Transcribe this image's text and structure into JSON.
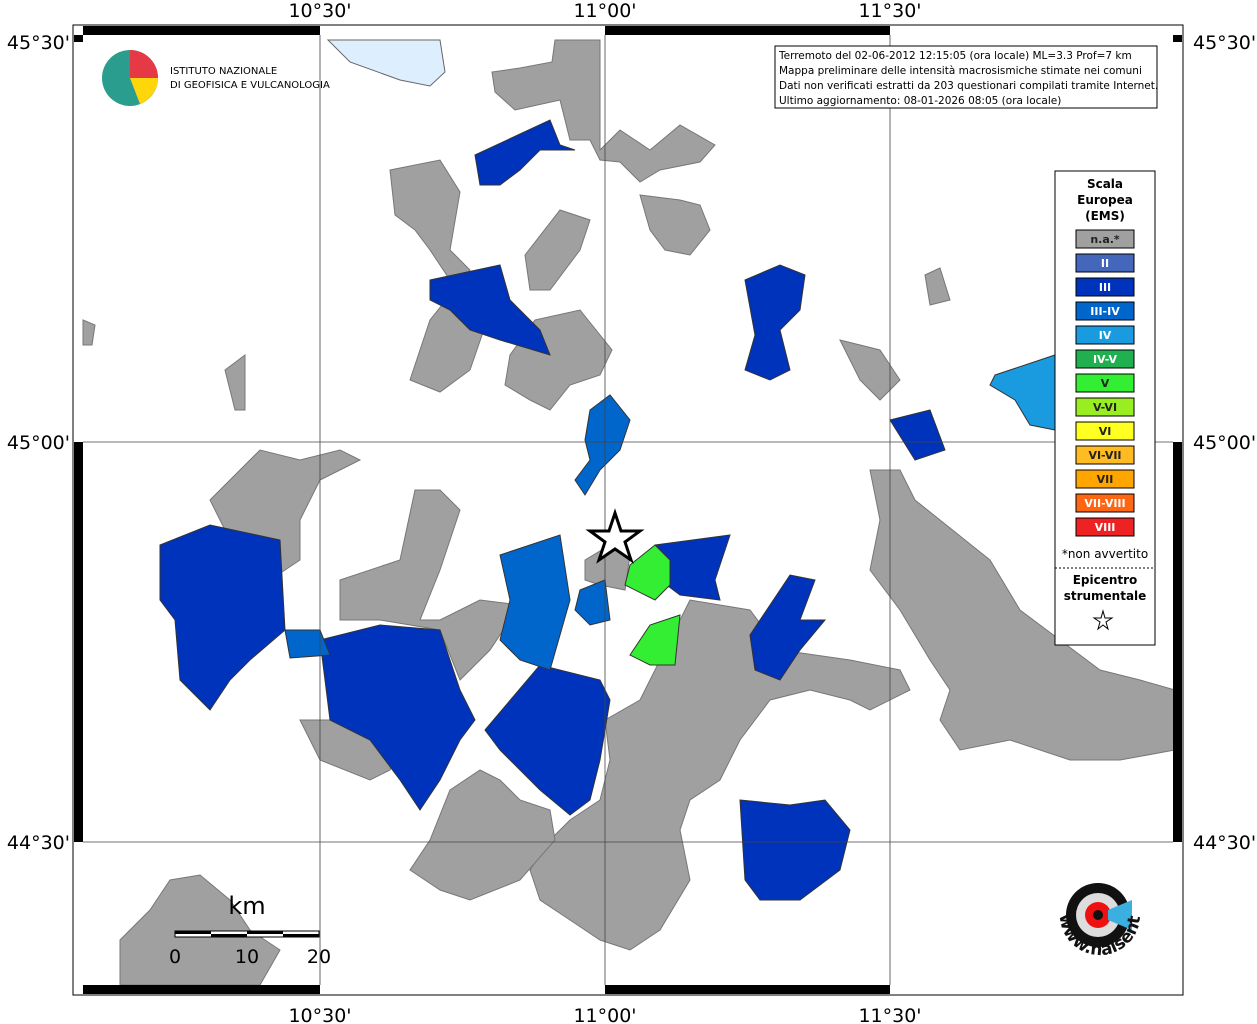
{
  "header": {
    "institute": [
      "ISTITUTO NAZIONALE",
      "DI GEOFISICA E VULCANOLOGIA"
    ]
  },
  "info": [
    "Terremoto del 02-06-2012 12:15:05 (ora locale) ML=3.3 Prof=7 km",
    "Mappa preliminare delle intensità macrosismiche stimate nei comuni",
    "Dati non verificati estratti da 203 questionari compilati tramite Internet.",
    "Ultimo aggiornamento: 08-01-2026 08:05 (ora locale)"
  ],
  "grid": {
    "lon": [
      "10°30'",
      "11°00'",
      "11°30'"
    ],
    "lat": [
      "45°30'",
      "45°00'",
      "44°30'"
    ]
  },
  "legend": {
    "title": [
      "Scala",
      "Europea",
      "(EMS)"
    ],
    "items": [
      {
        "label": "n.a.*",
        "color": "#a0a0a0"
      },
      {
        "label": "II",
        "color": "#4466bb"
      },
      {
        "label": "III",
        "color": "#0033bb"
      },
      {
        "label": "III-IV",
        "color": "#0066cc"
      },
      {
        "label": "IV",
        "color": "#1a9be0"
      },
      {
        "label": "IV-V",
        "color": "#20b050"
      },
      {
        "label": "V",
        "color": "#33ee33"
      },
      {
        "label": "V-VI",
        "color": "#99ee22"
      },
      {
        "label": "VI",
        "color": "#ffff22"
      },
      {
        "label": "VI-VII",
        "color": "#ffbb22"
      },
      {
        "label": "VII",
        "color": "#ffa500"
      },
      {
        "label": "VII-VIII",
        "color": "#ff6611"
      },
      {
        "label": "VIII",
        "color": "#ee2222"
      }
    ],
    "note": "*non avvertito",
    "epicenter": [
      "Epicentro",
      "strumentale"
    ]
  },
  "scale_bar": {
    "unit": "km",
    "labels": [
      "0",
      "10",
      "20"
    ]
  },
  "logo": "www.haisentitoilterremoto.it"
}
